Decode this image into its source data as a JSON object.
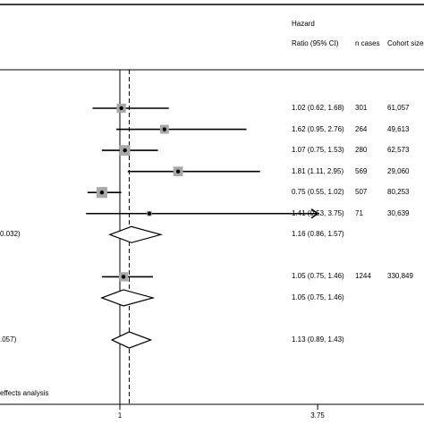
{
  "chart_data": {
    "type": "forest",
    "columns": {
      "hazard_line1": "Hazard",
      "hazard_line2": "Ratio (95% CI)",
      "n_cases": "n cases",
      "cohort_size": "Cohort size"
    },
    "x_ticks": [
      {
        "value": 1,
        "label": "1"
      },
      {
        "value": 3.75,
        "label": "3.75"
      }
    ],
    "reference_line": 1,
    "overall_line": 1.13,
    "rows": [
      {
        "kind": "study",
        "hr": 1.02,
        "lo": 0.62,
        "hi": 1.68,
        "weight": 0.7,
        "ci_text": "1.02 (0.62, 1.68)",
        "n_cases": "301",
        "cohort": "61,057"
      },
      {
        "kind": "study",
        "hr": 1.62,
        "lo": 0.95,
        "hi": 2.76,
        "weight": 0.65,
        "ci_text": "1.62 (0.95, 2.76)",
        "n_cases": "264",
        "cohort": "49,613"
      },
      {
        "kind": "study",
        "hr": 1.07,
        "lo": 0.75,
        "hi": 1.53,
        "weight": 0.85,
        "ci_text": "1.07 (0.75, 1.53)",
        "n_cases": "280",
        "cohort": "62,573"
      },
      {
        "kind": "study",
        "hr": 1.81,
        "lo": 1.11,
        "hi": 2.95,
        "weight": 0.75,
        "ci_text": "1.81 (1.11, 2.95)",
        "n_cases": "569",
        "cohort": "29,060"
      },
      {
        "kind": "study",
        "hr": 0.75,
        "lo": 0.55,
        "hi": 1.02,
        "weight": 0.9,
        "ci_text": "0.75 (0.55, 1.02)",
        "n_cases": "507",
        "cohort": "80,253"
      },
      {
        "kind": "study",
        "hr": 1.41,
        "lo": 0.53,
        "hi": 3.75,
        "weight": 0.2,
        "arrow": true,
        "ci_text": "1.41 (0.53, 3.75)",
        "n_cases": "71",
        "cohort": "30,639"
      },
      {
        "kind": "diamond",
        "hr": 1.16,
        "lo": 0.86,
        "hi": 1.57,
        "ci_text": "1.16 (0.86, 1.57)",
        "label": "0.032)"
      },
      {
        "kind": "blank"
      },
      {
        "kind": "study",
        "hr": 1.05,
        "lo": 0.75,
        "hi": 1.46,
        "weight": 0.7,
        "ci_text": "1.05 (0.75, 1.46)",
        "n_cases": "1244",
        "cohort": "330,849"
      },
      {
        "kind": "diamond",
        "hr": 1.05,
        "lo": 0.75,
        "hi": 1.46,
        "ci_text": "1.05 (0.75, 1.46)"
      },
      {
        "kind": "blank"
      },
      {
        "kind": "diamond",
        "hr": 1.13,
        "lo": 0.89,
        "hi": 1.43,
        "ci_text": "1.13 (0.89, 1.43)",
        "label": ".057)"
      }
    ],
    "footnote": "effects analysis"
  }
}
